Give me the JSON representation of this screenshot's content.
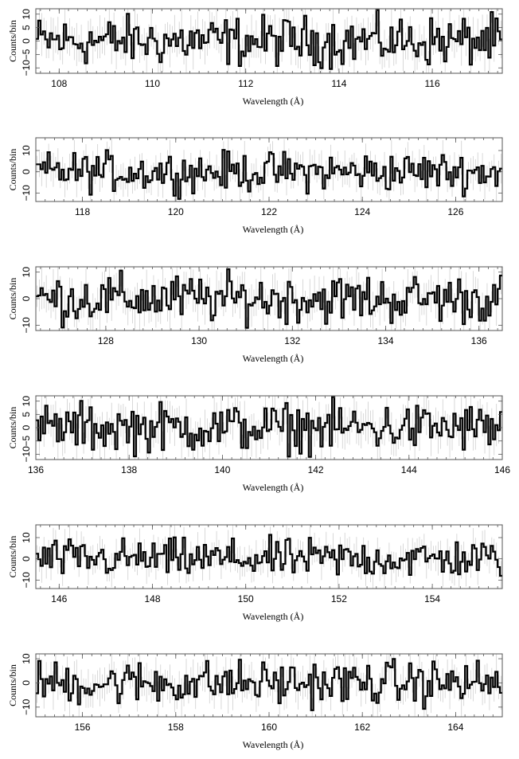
{
  "chart_data": [
    {
      "type": "line",
      "style": "step histogram with error bars",
      "xlabel": "Wavelength (Å)",
      "ylabel": "Counts/bin",
      "xlim": [
        107.5,
        117.5
      ],
      "ylim": [
        -12,
        12
      ],
      "xticks": [
        "108",
        "110",
        "112",
        "114",
        "116"
      ],
      "yticks": [
        "−10",
        "−5",
        "0",
        "5",
        "10"
      ],
      "series": [
        {
          "x": [],
          "y": []
        }
      ]
    },
    {
      "type": "line",
      "style": "step histogram with error bars",
      "xlabel": "Wavelength (Å)",
      "ylabel": "Counts/bin",
      "xlim": [
        117,
        127
      ],
      "ylim": [
        -14,
        16
      ],
      "xticks": [
        "118",
        "120",
        "122",
        "124",
        "126"
      ],
      "yticks": [
        "−10",
        "0",
        "10"
      ],
      "series": [
        {
          "x": [],
          "y": []
        }
      ]
    },
    {
      "type": "line",
      "style": "step histogram with error bars",
      "xlabel": "Wavelength (Å)",
      "ylabel": "Counts/bin",
      "xlim": [
        126.5,
        136.5
      ],
      "ylim": [
        -12,
        12
      ],
      "xticks": [
        "128",
        "130",
        "132",
        "134",
        "136"
      ],
      "yticks": [
        "−10",
        "0",
        "10"
      ],
      "series": [
        {
          "x": [],
          "y": []
        }
      ]
    },
    {
      "type": "line",
      "style": "step histogram with error bars",
      "xlabel": "Wavelength (Å)",
      "ylabel": "Counts/bin",
      "xlim": [
        136,
        146
      ],
      "ylim": [
        -12,
        12
      ],
      "xticks": [
        "136",
        "138",
        "140",
        "142",
        "144",
        "146"
      ],
      "yticks": [
        "−10",
        "−5",
        "0",
        "5",
        "10"
      ],
      "series": [
        {
          "x": [],
          "y": []
        }
      ]
    },
    {
      "type": "line",
      "style": "step histogram with error bars",
      "xlabel": "Wavelength (Å)",
      "ylabel": "Counts/bin",
      "xlim": [
        145.5,
        155.5
      ],
      "ylim": [
        -14,
        16
      ],
      "xticks": [
        "146",
        "148",
        "150",
        "152",
        "154"
      ],
      "yticks": [
        "−10",
        "0",
        "10"
      ],
      "series": [
        {
          "x": [],
          "y": []
        }
      ]
    },
    {
      "type": "line",
      "style": "step histogram with error bars",
      "xlabel": "Wavelength (Å)",
      "ylabel": "Counts/bin",
      "xlim": [
        155,
        165
      ],
      "ylim": [
        -14,
        12
      ],
      "xticks": [
        "156",
        "158",
        "160",
        "162",
        "164"
      ],
      "yticks": [
        "−10",
        "0",
        "10"
      ],
      "series": [
        {
          "x": [],
          "y": []
        }
      ]
    }
  ],
  "colors": {
    "step_line": "#000000",
    "error_bar": "#cfcfcf",
    "frame": "#555555"
  }
}
